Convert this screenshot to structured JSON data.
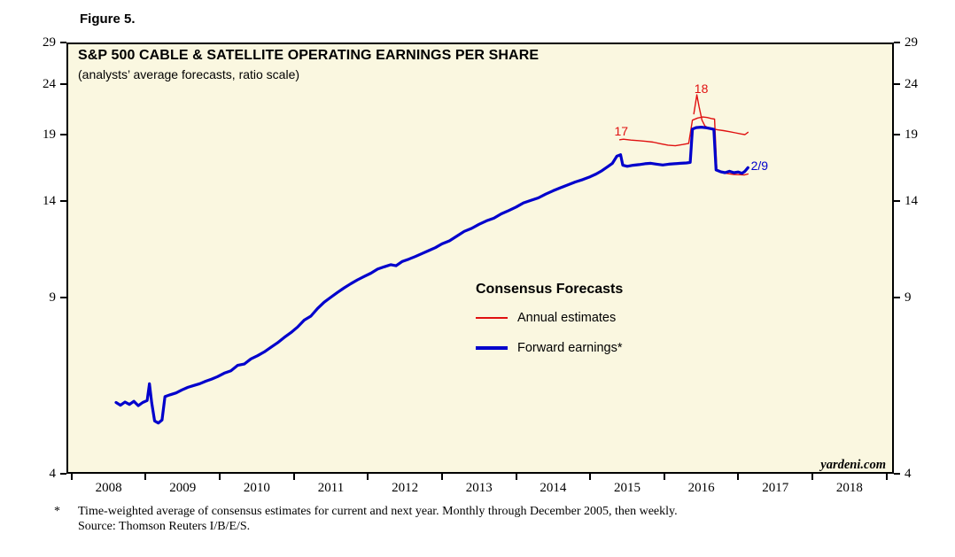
{
  "figure_label": "Figure 5.",
  "chart": {
    "title": "S&P 500 CABLE & SATELLITE OPERATING EARNINGS PER SHARE",
    "subtitle": "(analysts’ average forecasts, ratio scale)",
    "watermark": "yardeni.com",
    "legend": {
      "title": "Consensus Forecasts",
      "items": [
        {
          "label": "Annual estimates",
          "color": "#e01010"
        },
        {
          "label": "Forward earnings*",
          "color": "#0000cc"
        }
      ]
    }
  },
  "footnote": {
    "marker": "*",
    "line1": "Time-weighted average of consensus estimates for current and next year. Monthly through December 2005, then weekly.",
    "line2": "Source: Thomson Reuters I/B/E/S."
  },
  "chart_data": {
    "type": "line",
    "y_scale": "log",
    "x_domain": [
      2007.93,
      2019.1
    ],
    "y_domain": [
      4,
      29
    ],
    "y_ticks": [
      4,
      9,
      14,
      19,
      24,
      29
    ],
    "x_ticks": [
      2008,
      2009,
      2010,
      2011,
      2012,
      2013,
      2014,
      2015,
      2016,
      2017,
      2018,
      2019
    ],
    "x_year_labels": [
      2008,
      2009,
      2010,
      2011,
      2012,
      2013,
      2014,
      2015,
      2016,
      2017,
      2018
    ],
    "series": [
      {
        "name": "Annual estimates 2017",
        "color": "#e01010",
        "width": 1.4,
        "points": [
          [
            2015.4,
            18.55
          ],
          [
            2015.45,
            18.6
          ],
          [
            2015.55,
            18.52
          ],
          [
            2015.65,
            18.48
          ],
          [
            2015.75,
            18.42
          ],
          [
            2015.85,
            18.35
          ],
          [
            2015.95,
            18.22
          ],
          [
            2016.05,
            18.1
          ],
          [
            2016.15,
            18.05
          ],
          [
            2016.25,
            18.15
          ],
          [
            2016.33,
            18.25
          ],
          [
            2016.38,
            20.3
          ],
          [
            2016.45,
            20.5
          ],
          [
            2016.52,
            20.6
          ],
          [
            2016.58,
            20.55
          ],
          [
            2016.64,
            20.45
          ],
          [
            2016.68,
            20.4
          ],
          [
            2016.71,
            16.1
          ],
          [
            2016.78,
            15.95
          ],
          [
            2016.86,
            15.88
          ],
          [
            2016.94,
            15.82
          ],
          [
            2017.02,
            15.8
          ],
          [
            2017.08,
            15.78
          ],
          [
            2017.13,
            15.85
          ]
        ]
      },
      {
        "name": "Annual estimates 2018",
        "color": "#e01010",
        "width": 1.4,
        "points": [
          [
            2016.4,
            20.9
          ],
          [
            2016.44,
            22.8
          ],
          [
            2016.47,
            21.6
          ],
          [
            2016.51,
            20.3
          ],
          [
            2016.55,
            19.75
          ],
          [
            2016.6,
            19.58
          ],
          [
            2016.66,
            19.5
          ],
          [
            2016.72,
            19.42
          ],
          [
            2016.8,
            19.35
          ],
          [
            2016.88,
            19.25
          ],
          [
            2016.96,
            19.15
          ],
          [
            2017.04,
            19.05
          ],
          [
            2017.09,
            19.0
          ],
          [
            2017.13,
            19.2
          ]
        ]
      },
      {
        "name": "Forward earnings",
        "color": "#0000cc",
        "width": 3.2,
        "points": [
          [
            2008.6,
            5.55
          ],
          [
            2008.66,
            5.48
          ],
          [
            2008.72,
            5.56
          ],
          [
            2008.78,
            5.5
          ],
          [
            2008.84,
            5.58
          ],
          [
            2008.9,
            5.47
          ],
          [
            2008.96,
            5.55
          ],
          [
            2009.02,
            5.6
          ],
          [
            2009.05,
            6.05
          ],
          [
            2009.08,
            5.55
          ],
          [
            2009.12,
            5.1
          ],
          [
            2009.17,
            5.05
          ],
          [
            2009.22,
            5.12
          ],
          [
            2009.26,
            5.7
          ],
          [
            2009.33,
            5.75
          ],
          [
            2009.41,
            5.8
          ],
          [
            2009.49,
            5.88
          ],
          [
            2009.57,
            5.95
          ],
          [
            2009.65,
            6.0
          ],
          [
            2009.73,
            6.05
          ],
          [
            2009.81,
            6.12
          ],
          [
            2009.89,
            6.18
          ],
          [
            2009.97,
            6.25
          ],
          [
            2010.06,
            6.35
          ],
          [
            2010.15,
            6.42
          ],
          [
            2010.24,
            6.58
          ],
          [
            2010.33,
            6.62
          ],
          [
            2010.42,
            6.78
          ],
          [
            2010.51,
            6.88
          ],
          [
            2010.6,
            7.0
          ],
          [
            2010.69,
            7.15
          ],
          [
            2010.78,
            7.3
          ],
          [
            2010.87,
            7.48
          ],
          [
            2010.96,
            7.65
          ],
          [
            2011.05,
            7.85
          ],
          [
            2011.14,
            8.1
          ],
          [
            2011.23,
            8.25
          ],
          [
            2011.32,
            8.55
          ],
          [
            2011.41,
            8.8
          ],
          [
            2011.5,
            9.0
          ],
          [
            2011.59,
            9.2
          ],
          [
            2011.68,
            9.4
          ],
          [
            2011.77,
            9.58
          ],
          [
            2011.86,
            9.75
          ],
          [
            2011.95,
            9.9
          ],
          [
            2012.04,
            10.05
          ],
          [
            2012.13,
            10.24
          ],
          [
            2012.22,
            10.35
          ],
          [
            2012.31,
            10.45
          ],
          [
            2012.38,
            10.4
          ],
          [
            2012.46,
            10.6
          ],
          [
            2012.55,
            10.72
          ],
          [
            2012.64,
            10.85
          ],
          [
            2012.73,
            11.0
          ],
          [
            2012.82,
            11.15
          ],
          [
            2012.91,
            11.3
          ],
          [
            2013.0,
            11.5
          ],
          [
            2013.1,
            11.66
          ],
          [
            2013.2,
            11.92
          ],
          [
            2013.3,
            12.18
          ],
          [
            2013.4,
            12.35
          ],
          [
            2013.5,
            12.58
          ],
          [
            2013.6,
            12.78
          ],
          [
            2013.7,
            12.94
          ],
          [
            2013.8,
            13.2
          ],
          [
            2013.9,
            13.4
          ],
          [
            2014.0,
            13.62
          ],
          [
            2014.1,
            13.88
          ],
          [
            2014.2,
            14.05
          ],
          [
            2014.3,
            14.2
          ],
          [
            2014.4,
            14.45
          ],
          [
            2014.5,
            14.68
          ],
          [
            2014.6,
            14.88
          ],
          [
            2014.7,
            15.08
          ],
          [
            2014.8,
            15.28
          ],
          [
            2014.9,
            15.45
          ],
          [
            2015.0,
            15.65
          ],
          [
            2015.08,
            15.85
          ],
          [
            2015.16,
            16.1
          ],
          [
            2015.24,
            16.4
          ],
          [
            2015.3,
            16.65
          ],
          [
            2015.36,
            17.2
          ],
          [
            2015.41,
            17.32
          ],
          [
            2015.44,
            16.5
          ],
          [
            2015.5,
            16.42
          ],
          [
            2015.58,
            16.5
          ],
          [
            2015.66,
            16.55
          ],
          [
            2015.74,
            16.62
          ],
          [
            2015.82,
            16.65
          ],
          [
            2015.9,
            16.58
          ],
          [
            2015.98,
            16.52
          ],
          [
            2016.06,
            16.58
          ],
          [
            2016.14,
            16.62
          ],
          [
            2016.22,
            16.65
          ],
          [
            2016.3,
            16.68
          ],
          [
            2016.35,
            16.72
          ],
          [
            2016.38,
            19.48
          ],
          [
            2016.43,
            19.62
          ],
          [
            2016.5,
            19.66
          ],
          [
            2016.57,
            19.6
          ],
          [
            2016.63,
            19.52
          ],
          [
            2016.67,
            19.46
          ],
          [
            2016.7,
            16.15
          ],
          [
            2016.76,
            16.02
          ],
          [
            2016.82,
            15.95
          ],
          [
            2016.88,
            16.05
          ],
          [
            2016.94,
            15.95
          ],
          [
            2017.0,
            16.0
          ],
          [
            2017.05,
            15.9
          ],
          [
            2017.09,
            16.05
          ],
          [
            2017.13,
            16.32
          ]
        ]
      }
    ],
    "annotations": [
      {
        "text": "17",
        "x": 2015.42,
        "y": 19.3,
        "color": "#e01010",
        "anchor": "middle"
      },
      {
        "text": "18",
        "x": 2016.5,
        "y": 23.5,
        "color": "#e01010",
        "anchor": "middle"
      },
      {
        "text": "2/9",
        "x": 2017.17,
        "y": 16.5,
        "color": "#0000cc",
        "anchor": "start"
      }
    ]
  }
}
